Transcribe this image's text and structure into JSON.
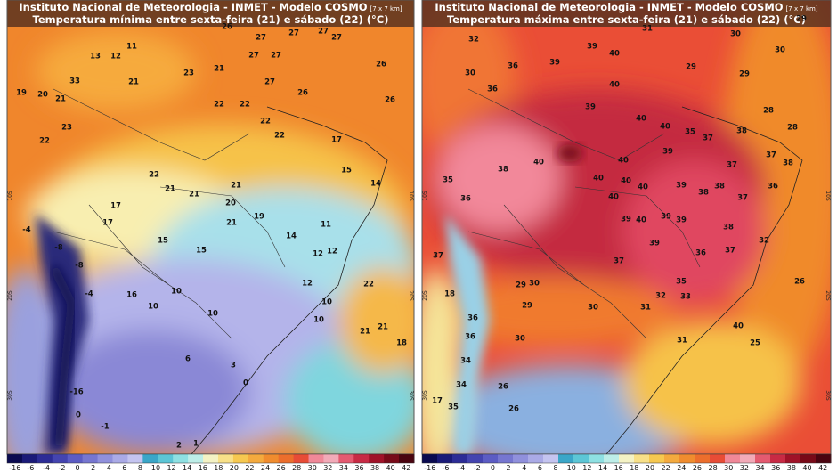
{
  "panels": [
    {
      "title": "Instituto Nacional de Meteorologia - INMET - Modelo COSMO",
      "resolution": "[7 x 7 km]",
      "subtitle": "Temperatura mínima entre sexta-feira (21) e sábado (22) (°C)",
      "lat_labels": [
        "10S",
        "20S",
        "30S"
      ],
      "labels": [
        26,
        27,
        27,
        27,
        27,
        11,
        13,
        12,
        21,
        23,
        27,
        27,
        26,
        19,
        20,
        21,
        21,
        33,
        27,
        26,
        26,
        22,
        22,
        22,
        22,
        17,
        23,
        22,
        22,
        21,
        21,
        21,
        15,
        14,
        17,
        20,
        19,
        17,
        21,
        14,
        11,
        15,
        15,
        12,
        12,
        16,
        10,
        12,
        10,
        10,
        10,
        22,
        10,
        21,
        21,
        18,
        6,
        3,
        0,
        -16,
        0,
        -1,
        2,
        1,
        -8,
        -4,
        -8,
        -4
      ]
    },
    {
      "title": "Instituto Nacional de Meteorologia - INMET - Modelo COSMO",
      "resolution": "[7 x 7 km]",
      "subtitle": "Temperatura máxima entre sexta-feira (21) e sábado (22) (°C)",
      "lat_labels": [
        "10S",
        "20S",
        "30S"
      ],
      "labels": [
        32,
        31,
        30,
        29,
        30,
        39,
        40,
        30,
        36,
        39,
        40,
        29,
        29,
        36,
        39,
        40,
        40,
        28,
        28,
        35,
        37,
        38,
        40,
        38,
        40,
        40,
        39,
        37,
        37,
        38,
        35,
        40,
        40,
        39,
        38,
        38,
        36,
        36,
        40,
        37,
        39,
        40,
        39,
        39,
        38,
        39,
        36,
        37,
        32,
        37,
        37,
        35,
        26,
        18,
        29,
        30,
        29,
        30,
        31,
        32,
        33,
        36,
        40,
        36,
        30,
        31,
        25,
        34,
        34,
        26,
        17,
        35,
        26
      ]
    }
  ],
  "colorbar": {
    "labels": [
      -16,
      -6,
      -4,
      -2,
      0,
      2,
      4,
      6,
      8,
      10,
      12,
      14,
      16,
      18,
      20,
      22,
      24,
      26,
      28,
      30,
      32,
      34,
      36,
      38,
      40,
      42
    ],
    "colors": [
      "#0a0a50",
      "#1a1a78",
      "#2c2c96",
      "#4444b0",
      "#5c5cc4",
      "#7676d0",
      "#9090dc",
      "#aaaae6",
      "#c4c4f0",
      "#3aa6c8",
      "#5cc6d6",
      "#8ee0e2",
      "#bdeee8",
      "#f4f2c4",
      "#f8e088",
      "#f6c850",
      "#f4aa3e",
      "#f08c2e",
      "#ec6e2c",
      "#e84c36",
      "#f08898",
      "#f2aab8",
      "#e45a70",
      "#c82a44",
      "#a01228",
      "#780a18",
      "#4a0410"
    ]
  }
}
